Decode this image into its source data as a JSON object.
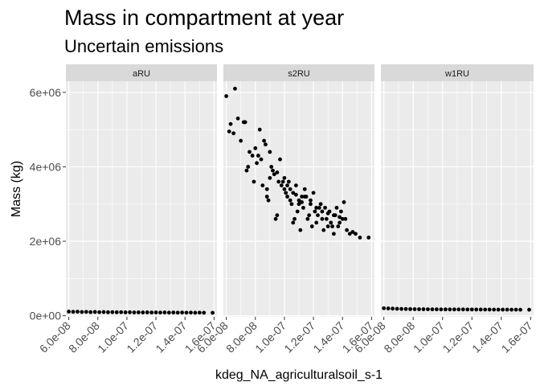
{
  "chart_data": {
    "type": "scatter",
    "title": "Mass in compartment at year",
    "subtitle": "Uncertain emissions",
    "xlabel": "kdeg_NA_agriculturalsoil_s-1",
    "ylabel": "Mass (kg)",
    "xlim": [
      5.8e-08,
      1.62e-07
    ],
    "ylim": [
      -30000.0,
      6300000.0
    ],
    "x_ticks": [
      6e-08,
      8e-08,
      1e-07,
      1.2e-07,
      1.4e-07,
      1.6e-07
    ],
    "x_tick_labels": [
      "6.0e-08",
      "8.0e-08",
      "1.0e-07",
      "1.2e-07",
      "1.4e-07",
      "1.6e-07"
    ],
    "y_ticks": [
      0,
      2000000,
      4000000,
      6000000
    ],
    "y_tick_labels": [
      "0e+00",
      "2e+06",
      "4e+06",
      "6e+06"
    ],
    "grid": true,
    "facets": [
      {
        "name": "aRU",
        "x": [
          6e-08,
          6.3e-08,
          6.6e-08,
          6.9e-08,
          7.2e-08,
          7.5e-08,
          7.8e-08,
          8.1e-08,
          8.4e-08,
          8.7e-08,
          9e-08,
          9.3e-08,
          9.6e-08,
          9.9e-08,
          1.02e-07,
          1.05e-07,
          1.08e-07,
          1.11e-07,
          1.14e-07,
          1.17e-07,
          1.2e-07,
          1.23e-07,
          1.26e-07,
          1.29e-07,
          1.32e-07,
          1.35e-07,
          1.38e-07,
          1.41e-07,
          1.44e-07,
          1.47e-07,
          1.5e-07,
          1.53e-07,
          1.59e-07
        ],
        "y": [
          110000,
          105000,
          108000,
          100000,
          103000,
          97000,
          101000,
          95000,
          98000,
          93000,
          96000,
          92000,
          95000,
          90000,
          93000,
          88000,
          91000,
          87000,
          90000,
          86000,
          88000,
          84000,
          87000,
          83000,
          86000,
          82000,
          85000,
          81000,
          84000,
          80000,
          83000,
          79000,
          78000
        ]
      },
      {
        "name": "s2RU",
        "x": [
          6e-08,
          6.2e-08,
          6.3e-08,
          6.5e-08,
          6.6e-08,
          6.8e-08,
          7e-08,
          7.2e-08,
          7.3e-08,
          7.4e-08,
          7.5e-08,
          7.6e-08,
          7.8e-08,
          7.9e-08,
          8e-08,
          8.1e-08,
          8.2e-08,
          8.3e-08,
          8.4e-08,
          8.5e-08,
          8.6e-08,
          8.7e-08,
          8.8e-08,
          8.9e-08,
          9e-08,
          9.1e-08,
          9.2e-08,
          9.3e-08,
          9.4e-08,
          9.5e-08,
          9.6e-08,
          9.7e-08,
          9.8e-08,
          9.9e-08,
          1e-07,
          1.01e-07,
          1.02e-07,
          1.03e-07,
          1.04e-07,
          1.05e-07,
          1.06e-07,
          1.07e-07,
          1.08e-07,
          1.09e-07,
          1.1e-07,
          1.11e-07,
          1.12e-07,
          1.13e-07,
          1.14e-07,
          1.15e-07,
          1.16e-07,
          1.17e-07,
          1.18e-07,
          1.19e-07,
          1.2e-07,
          1.21e-07,
          1.22e-07,
          1.23e-07,
          1.24e-07,
          1.25e-07,
          1.26e-07,
          1.27e-07,
          1.28e-07,
          1.29e-07,
          1.3e-07,
          1.31e-07,
          1.32e-07,
          1.33e-07,
          1.34e-07,
          1.35e-07,
          1.36e-07,
          1.37e-07,
          1.38e-07,
          1.39e-07,
          1.4e-07,
          1.41e-07,
          1.42e-07,
          1.43e-07,
          1.45e-07,
          1.47e-07,
          1.49e-07,
          1.52e-07,
          1.58e-07,
          1e-07,
          1.02e-07,
          1.04e-07,
          1.06e-07,
          1.08e-07,
          1.1e-07,
          1.12e-07,
          1.14e-07,
          1.18e-07,
          1.22e-07,
          1.26e-07,
          1.3e-07,
          1.34e-07,
          1.38e-07,
          9.5e-08,
          9e-08,
          8.8e-08
        ],
        "y": [
          5900000,
          4950000,
          5150000,
          4900000,
          6100000,
          5300000,
          4700000,
          5200000,
          5200000,
          3900000,
          4000000,
          4400000,
          4300000,
          3600000,
          4500000,
          4100000,
          4300000,
          5000000,
          4200000,
          3500000,
          4700000,
          4600000,
          3200000,
          3100000,
          4400000,
          4000000,
          3900000,
          3800000,
          2600000,
          2700000,
          3600000,
          4200000,
          3500000,
          3600000,
          3400000,
          3300000,
          3200000,
          3600000,
          3100000,
          3000000,
          2500000,
          2600000,
          3500000,
          2800000,
          3000000,
          2300000,
          3200000,
          2900000,
          3400000,
          3200000,
          2600000,
          2700000,
          3100000,
          2400000,
          3300000,
          2800000,
          2500000,
          2700000,
          2900000,
          3000000,
          2600000,
          2300000,
          2900000,
          2600000,
          2400000,
          2800000,
          2500000,
          2400000,
          2200000,
          2700000,
          2900000,
          2400000,
          2500000,
          2800000,
          2600000,
          3050000,
          2600000,
          2300000,
          2200000,
          2250000,
          2200000,
          2100000,
          2100000,
          3700000,
          3500000,
          3400000,
          3300000,
          3250000,
          3100000,
          3050000,
          3200000,
          3000000,
          2900000,
          2800000,
          2750000,
          2700000,
          2650000,
          3850000,
          3700000,
          3400000
        ]
      },
      {
        "name": "w1RU",
        "x": [
          6e-08,
          6.3e-08,
          6.6e-08,
          6.9e-08,
          7.2e-08,
          7.5e-08,
          7.8e-08,
          8.1e-08,
          8.4e-08,
          8.7e-08,
          9e-08,
          9.3e-08,
          9.6e-08,
          9.9e-08,
          1.02e-07,
          1.05e-07,
          1.08e-07,
          1.11e-07,
          1.14e-07,
          1.17e-07,
          1.2e-07,
          1.23e-07,
          1.26e-07,
          1.29e-07,
          1.32e-07,
          1.35e-07,
          1.38e-07,
          1.41e-07,
          1.44e-07,
          1.47e-07,
          1.5e-07,
          1.53e-07,
          1.59e-07
        ],
        "y": [
          200000,
          195000,
          190000,
          186000,
          182000,
          180000,
          178000,
          176000,
          175000,
          174000,
          173000,
          172000,
          171000,
          170000,
          170000,
          169000,
          169000,
          168000,
          168000,
          167000,
          167000,
          166000,
          166000,
          165000,
          165000,
          164000,
          164000,
          163000,
          163000,
          162000,
          162000,
          161000,
          160000
        ]
      }
    ]
  }
}
